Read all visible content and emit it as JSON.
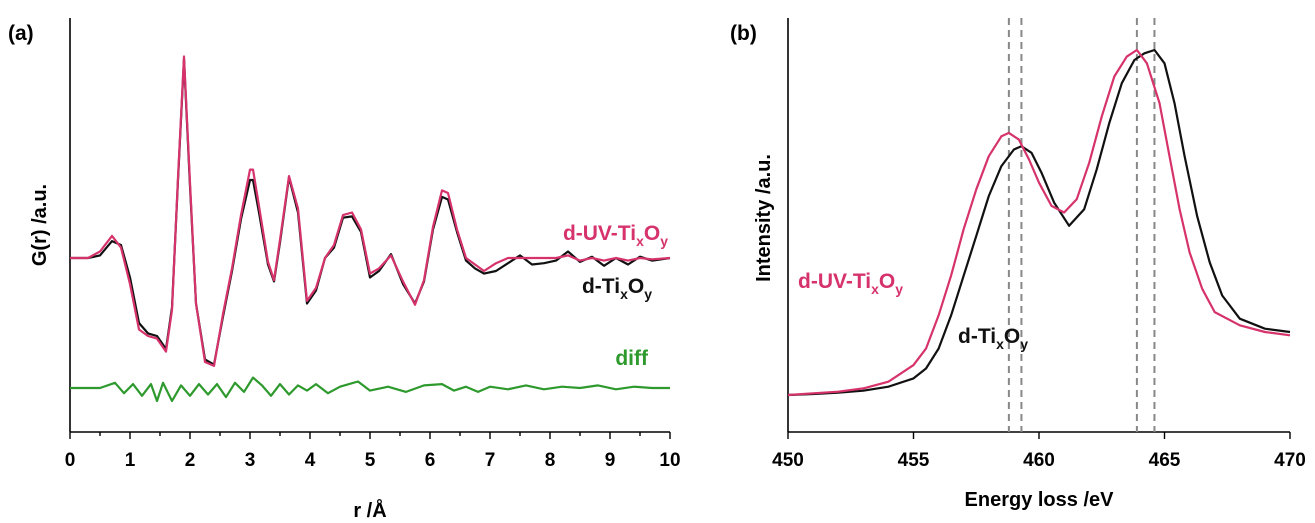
{
  "colors": {
    "d_uv": "#d6336c",
    "d": "#111111",
    "diff": "#2e9a2e",
    "vline": "#888888"
  },
  "chart_data": [
    {
      "type": "line",
      "panel": "(a)",
      "xlabel": "r /Å",
      "ylabel": "G(r) /a.u.",
      "xlim": [
        0,
        10
      ],
      "ylim": [
        -1.2,
        1.75
      ],
      "xticks": [
        0,
        1,
        2,
        3,
        4,
        5,
        6,
        7,
        8,
        9,
        10
      ],
      "grid": false,
      "series": [
        {
          "name_main": "d-Ti",
          "sub1": "x",
          "mid": "O",
          "sub2": "y",
          "label_position": "right",
          "color_key": "d",
          "x": [
            0,
            0.3,
            0.5,
            0.7,
            0.85,
            1.0,
            1.15,
            1.3,
            1.45,
            1.6,
            1.7,
            1.8,
            1.9,
            2.0,
            2.1,
            2.25,
            2.4,
            2.55,
            2.7,
            2.85,
            3.0,
            3.05,
            3.15,
            3.3,
            3.4,
            3.5,
            3.65,
            3.8,
            3.95,
            4.1,
            4.25,
            4.4,
            4.55,
            4.7,
            4.85,
            5.0,
            5.15,
            5.35,
            5.55,
            5.75,
            5.9,
            6.05,
            6.2,
            6.3,
            6.45,
            6.6,
            6.75,
            6.9,
            7.1,
            7.3,
            7.5,
            7.7,
            7.9,
            8.1,
            8.3,
            8.5,
            8.7,
            8.9,
            9.1,
            9.3,
            9.5,
            9.7,
            10.0
          ],
          "y": [
            0,
            0.0,
            0.02,
            0.13,
            0.1,
            -0.15,
            -0.5,
            -0.58,
            -0.6,
            -0.7,
            -0.38,
            0.6,
            1.53,
            0.55,
            -0.35,
            -0.78,
            -0.82,
            -0.45,
            -0.1,
            0.3,
            0.6,
            0.6,
            0.35,
            -0.05,
            -0.18,
            0.12,
            0.62,
            0.35,
            -0.35,
            -0.25,
            0.0,
            0.08,
            0.31,
            0.32,
            0.2,
            -0.15,
            -0.1,
            0.03,
            -0.2,
            -0.35,
            -0.18,
            0.22,
            0.47,
            0.45,
            0.2,
            -0.02,
            -0.08,
            -0.12,
            -0.1,
            -0.04,
            0.02,
            -0.05,
            -0.04,
            -0.02,
            0.05,
            -0.03,
            0.01,
            -0.06,
            0.0,
            -0.05,
            0.01,
            -0.02,
            0.0
          ]
        },
        {
          "name_main": "d-UV-Ti",
          "sub1": "x",
          "mid": "O",
          "sub2": "y",
          "label_position": "right",
          "color_key": "d_uv",
          "x": [
            0,
            0.3,
            0.5,
            0.7,
            0.85,
            1.0,
            1.15,
            1.3,
            1.45,
            1.6,
            1.7,
            1.8,
            1.9,
            2.0,
            2.1,
            2.25,
            2.4,
            2.55,
            2.7,
            2.85,
            3.0,
            3.05,
            3.15,
            3.3,
            3.4,
            3.5,
            3.65,
            3.8,
            3.95,
            4.1,
            4.25,
            4.4,
            4.55,
            4.7,
            4.85,
            5.0,
            5.15,
            5.35,
            5.55,
            5.75,
            5.9,
            6.05,
            6.2,
            6.3,
            6.45,
            6.6,
            6.75,
            6.9,
            7.1,
            7.3,
            7.5,
            7.7,
            7.9,
            8.1,
            8.3,
            8.5,
            8.7,
            8.9,
            9.1,
            9.3,
            9.5,
            9.7,
            10.0
          ],
          "y": [
            0,
            0.0,
            0.05,
            0.17,
            0.08,
            -0.2,
            -0.55,
            -0.6,
            -0.62,
            -0.72,
            -0.4,
            0.62,
            1.55,
            0.58,
            -0.35,
            -0.8,
            -0.83,
            -0.43,
            -0.08,
            0.33,
            0.68,
            0.68,
            0.4,
            -0.03,
            -0.17,
            0.14,
            0.63,
            0.38,
            -0.33,
            -0.23,
            0.0,
            0.1,
            0.33,
            0.35,
            0.22,
            -0.12,
            -0.08,
            0.02,
            -0.18,
            -0.36,
            -0.17,
            0.24,
            0.52,
            0.5,
            0.22,
            0.0,
            -0.05,
            -0.1,
            -0.04,
            0.0,
            0.0,
            0.0,
            0.0,
            0.0,
            0.02,
            -0.02,
            0.0,
            -0.02,
            0.0,
            -0.02,
            0.0,
            -0.01,
            0.0
          ]
        },
        {
          "name_main": "diff",
          "label_position": "right",
          "color_key": "diff",
          "offset": -1.0,
          "x": [
            0,
            0.5,
            0.75,
            0.9,
            1.05,
            1.2,
            1.35,
            1.45,
            1.55,
            1.7,
            1.85,
            2.0,
            2.15,
            2.3,
            2.45,
            2.6,
            2.75,
            2.9,
            3.05,
            3.2,
            3.35,
            3.5,
            3.65,
            3.8,
            3.95,
            4.1,
            4.3,
            4.5,
            4.8,
            5.0,
            5.3,
            5.6,
            5.9,
            6.2,
            6.4,
            6.6,
            6.8,
            7.0,
            7.3,
            7.6,
            7.9,
            8.2,
            8.5,
            8.8,
            9.1,
            9.4,
            9.7,
            10.0
          ],
          "y": [
            -1.0,
            -1.0,
            -0.96,
            -1.04,
            -0.97,
            -1.06,
            -0.97,
            -1.1,
            -0.96,
            -1.1,
            -0.98,
            -1.06,
            -0.97,
            -1.05,
            -0.97,
            -1.07,
            -0.96,
            -1.03,
            -0.92,
            -0.98,
            -1.06,
            -0.97,
            -1.05,
            -0.98,
            -1.02,
            -0.97,
            -1.04,
            -0.99,
            -0.95,
            -1.02,
            -0.99,
            -1.03,
            -0.98,
            -0.97,
            -1.02,
            -0.99,
            -1.03,
            -0.99,
            -1.01,
            -0.98,
            -1.01,
            -0.99,
            -1.0,
            -0.98,
            -1.01,
            -0.99,
            -1.0,
            -1.0
          ]
        }
      ]
    },
    {
      "type": "line",
      "panel": "(b)",
      "xlabel": "Energy loss /eV",
      "ylabel": "Intensity /a.u.",
      "xlim": [
        450,
        470
      ],
      "ylim": [
        -0.08,
        1.1
      ],
      "xticks": [
        450,
        455,
        460,
        465,
        470
      ],
      "grid": false,
      "vlines": [
        458.8,
        459.3,
        463.9,
        464.6
      ],
      "series": [
        {
          "name_main": "d-UV-Ti",
          "sub1": "x",
          "mid": "O",
          "sub2": "y",
          "label_position": "left",
          "color_key": "d_uv",
          "x": [
            450,
            451,
            452,
            453,
            454,
            455,
            455.5,
            456,
            456.5,
            457,
            457.5,
            458,
            458.5,
            458.8,
            459.2,
            459.6,
            460,
            460.5,
            461,
            461.5,
            462,
            462.5,
            463,
            463.5,
            463.9,
            464.3,
            464.8,
            465.2,
            465.6,
            466,
            466.5,
            467,
            468,
            469,
            470
          ],
          "y": [
            0.0,
            0.005,
            0.01,
            0.02,
            0.04,
            0.09,
            0.14,
            0.24,
            0.36,
            0.5,
            0.62,
            0.72,
            0.78,
            0.79,
            0.77,
            0.71,
            0.64,
            0.57,
            0.55,
            0.59,
            0.7,
            0.84,
            0.96,
            1.02,
            1.04,
            1.0,
            0.88,
            0.72,
            0.56,
            0.43,
            0.32,
            0.25,
            0.21,
            0.19,
            0.18
          ]
        },
        {
          "name_main": "d-Ti",
          "sub1": "x",
          "mid": "O",
          "sub2": "y",
          "label_position": "center",
          "color_key": "d",
          "x": [
            450,
            451,
            452,
            453,
            454,
            455,
            455.5,
            456,
            456.5,
            457,
            457.5,
            458,
            458.5,
            459,
            459.3,
            459.7,
            460.1,
            460.6,
            461.2,
            461.8,
            462.3,
            462.8,
            463.3,
            463.8,
            464.2,
            464.6,
            465,
            465.4,
            465.8,
            466.3,
            466.8,
            467.3,
            468,
            469,
            470
          ],
          "y": [
            0.0,
            0.003,
            0.007,
            0.013,
            0.025,
            0.05,
            0.08,
            0.14,
            0.24,
            0.36,
            0.48,
            0.6,
            0.69,
            0.74,
            0.75,
            0.73,
            0.67,
            0.58,
            0.51,
            0.56,
            0.68,
            0.82,
            0.94,
            1.01,
            1.03,
            1.04,
            1.0,
            0.88,
            0.72,
            0.54,
            0.4,
            0.3,
            0.23,
            0.2,
            0.19
          ]
        }
      ]
    }
  ]
}
